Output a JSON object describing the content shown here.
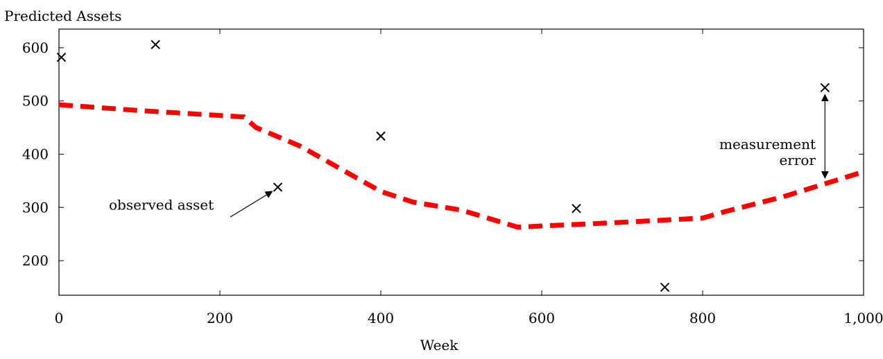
{
  "chart_data": {
    "type": "line",
    "title": "",
    "ylabel": "Predicted Assets",
    "xlabel": "Week",
    "xlim": [
      0,
      1000
    ],
    "ylim": [
      135,
      635
    ],
    "xticks": [
      0,
      200,
      400,
      600,
      800,
      1000
    ],
    "xtick_labels": [
      "0",
      "200",
      "400",
      "600",
      "800",
      "1,000"
    ],
    "yticks": [
      200,
      300,
      400,
      500,
      600
    ],
    "ytick_labels": [
      "200",
      "300",
      "400",
      "500",
      "600"
    ],
    "grid": false,
    "series": [
      {
        "style": "dashed-line",
        "color": "#ff0000",
        "x": [
          0,
          100,
          230,
          245,
          300,
          400,
          440,
          500,
          570,
          700,
          800,
          830,
          900,
          1000
        ],
        "y": [
          493,
          482,
          470,
          450,
          415,
          330,
          310,
          295,
          263,
          272,
          280,
          293,
          320,
          367
        ]
      },
      {
        "style": "markers-x",
        "color": "#000000",
        "x": [
          3,
          120,
          272,
          400,
          643,
          753,
          952
        ],
        "y": [
          582,
          606,
          338,
          434,
          298,
          150,
          525
        ]
      }
    ],
    "annotations": [
      {
        "text": "observed asset",
        "arrow_to": {
          "x": 272,
          "y": 338
        }
      },
      {
        "text_lines": [
          "measurement",
          "error"
        ],
        "double_arrow_x": 952,
        "double_arrow_y": [
          525,
          350
        ]
      }
    ]
  }
}
